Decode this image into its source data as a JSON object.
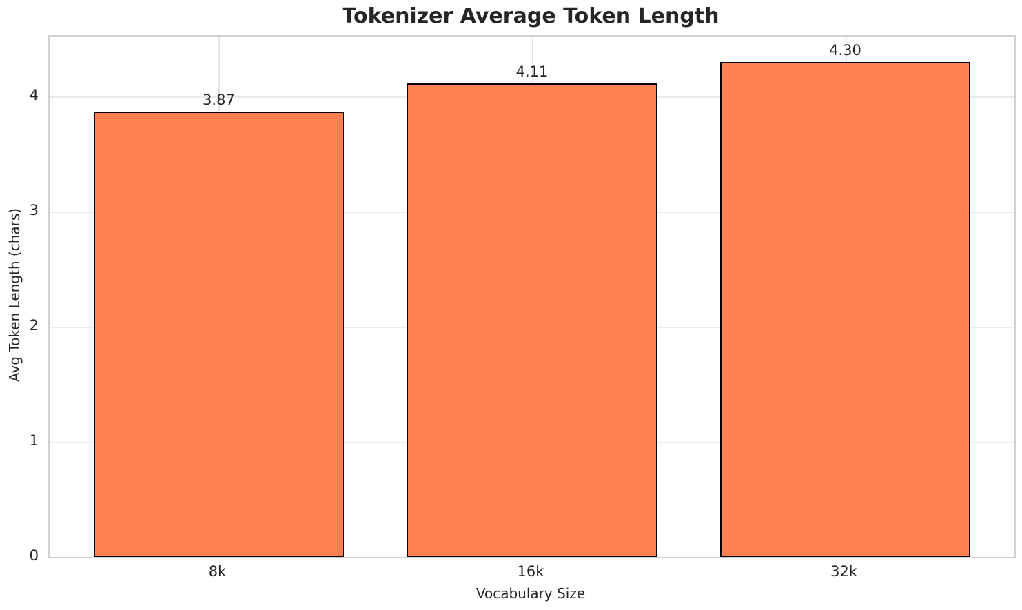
{
  "chart_data": {
    "type": "bar",
    "title": "Tokenizer Average Token Length",
    "xlabel": "Vocabulary Size",
    "ylabel": "Avg Token Length (chars)",
    "categories": [
      "8k",
      "16k",
      "32k"
    ],
    "values": [
      3.87,
      4.11,
      4.3
    ],
    "value_labels": [
      "3.87",
      "4.11",
      "4.30"
    ],
    "yticks": [
      0,
      1,
      2,
      3,
      4
    ],
    "ytick_labels": [
      "0",
      "1",
      "2",
      "3",
      "4"
    ],
    "ylim": [
      0,
      4.52
    ],
    "xlim": [
      -0.54,
      2.54
    ],
    "bar_width": 0.8,
    "grid": "on",
    "legend": "none",
    "colors": {
      "bar_fill": "#FF7F50",
      "bar_edge": "#000000",
      "grid_horizontal": "#EBEBEB",
      "grid_vertical": "#E3E3E3",
      "spine": "#D0D0D0",
      "text": "#262626",
      "background": "#FFFFFF"
    }
  }
}
